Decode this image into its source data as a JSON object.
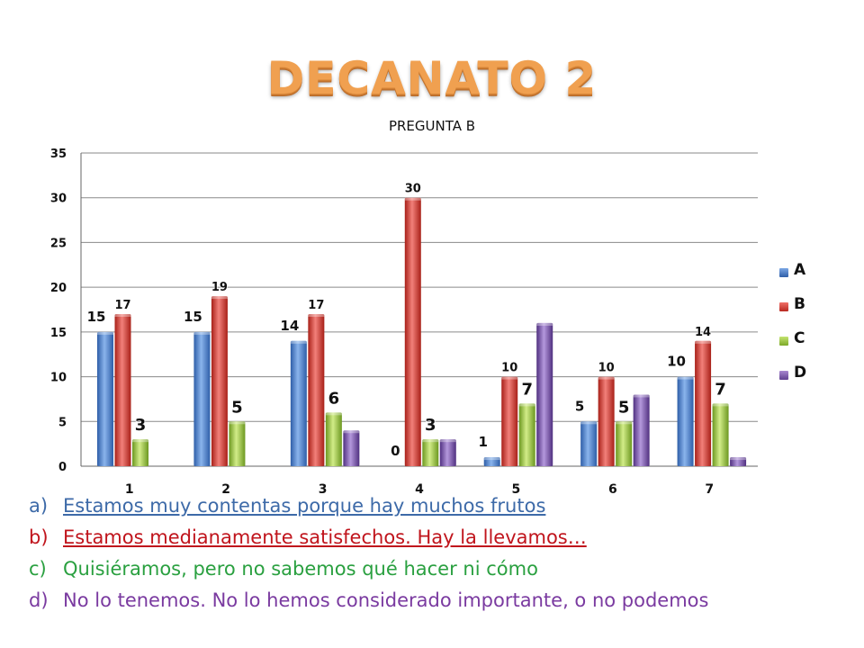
{
  "title": "DECANATO 2",
  "chart_data": {
    "type": "bar",
    "title": "PREGUNTA B",
    "categories": [
      "1",
      "2",
      "3",
      "4",
      "5",
      "6",
      "7"
    ],
    "series": [
      {
        "name": "A",
        "color": "#4a7fc8",
        "values": [
          15,
          15,
          14,
          0,
          1,
          5,
          10
        ]
      },
      {
        "name": "B",
        "color": "#d84038",
        "values": [
          17,
          19,
          17,
          30,
          10,
          10,
          14
        ]
      },
      {
        "name": "C",
        "color": "#9cc640",
        "values": [
          3,
          5,
          6,
          3,
          7,
          5,
          7
        ]
      },
      {
        "name": "D",
        "color": "#8060a8",
        "values": [
          null,
          null,
          4,
          3,
          16,
          8,
          1
        ]
      }
    ],
    "data_labels": {
      "A": true,
      "B": true,
      "C": true,
      "D": false
    },
    "yticks": [
      "0",
      "5",
      "10",
      "15",
      "20",
      "25",
      "30",
      "35"
    ],
    "ylim": [
      0,
      35
    ],
    "grid": true,
    "legend_position": "right"
  },
  "options": [
    {
      "letter": "a)",
      "text": "Estamos muy contentas porque hay muchos frutos",
      "color": "#3d6aa8",
      "underline": true
    },
    {
      "letter": "b)",
      "text": "Estamos medianamente satisfechos. Hay la llevamos…",
      "color": "#c0141c",
      "underline": true
    },
    {
      "letter": "c)",
      "text": "Quisiéramos, pero no sabemos qué hacer ni cómo",
      "color": "#2aa040",
      "underline": false
    },
    {
      "letter": "d)",
      "text": "No lo tenemos. No lo hemos considerado importante, o no podemos",
      "color": "#7a3aa0",
      "underline": false
    }
  ]
}
